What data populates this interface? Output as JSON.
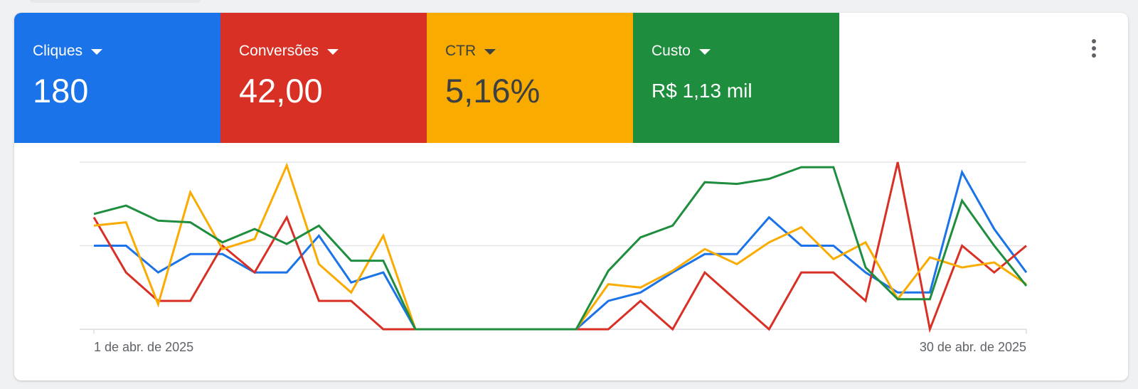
{
  "metrics": [
    {
      "label": "Cliques",
      "value": "180",
      "color": "#1a73e8",
      "text_color": "#ffffff"
    },
    {
      "label": "Conversões",
      "value": "42,00",
      "color": "#d93025",
      "text_color": "#ffffff"
    },
    {
      "label": "CTR",
      "value": "5,16%",
      "color": "#f9ab00",
      "text_color": "#3c4043"
    },
    {
      "label": "Custo",
      "value": "R$ 1,13 mil",
      "color": "#1e8e3e",
      "text_color": "#ffffff"
    }
  ],
  "icons": {
    "metric_dropdown": "caret-down-icon",
    "more": "more-vert-icon"
  },
  "chart_data": {
    "type": "line",
    "x": [
      "1 de abr. de 2025",
      "2",
      "3",
      "4",
      "5",
      "6",
      "7",
      "8",
      "9",
      "10",
      "11",
      "12",
      "13",
      "14",
      "15",
      "16",
      "17",
      "18",
      "19",
      "20",
      "21",
      "22",
      "23",
      "24",
      "25",
      "26",
      "27",
      "28",
      "29",
      "30 de abr. de 2025"
    ],
    "x_tick_labels": [
      "1 de abr. de 2025",
      "30 de abr. de 2025"
    ],
    "ylim": [
      0,
      100
    ],
    "grid": true,
    "y_gridlines": 3,
    "series": [
      {
        "color": "#1a73e8",
        "values": [
          50,
          50,
          34,
          45,
          45,
          34,
          34,
          56,
          28,
          34,
          0,
          0,
          0,
          0,
          0,
          0,
          17,
          22,
          34,
          45,
          45,
          67,
          50,
          50,
          34,
          22,
          22,
          94,
          60,
          34
        ]
      },
      {
        "color": "#d93025",
        "values": [
          67,
          34,
          17,
          17,
          50,
          34,
          67,
          17,
          17,
          0,
          0,
          0,
          0,
          0,
          0,
          0,
          0,
          17,
          0,
          34,
          17,
          0,
          34,
          34,
          17,
          100,
          0,
          50,
          34,
          50
        ]
      },
      {
        "color": "#f9ab00",
        "values": [
          62,
          64,
          15,
          82,
          48,
          54,
          98,
          39,
          22,
          56,
          0,
          0,
          0,
          0,
          0,
          0,
          27,
          25,
          35,
          48,
          39,
          52,
          61,
          42,
          52,
          18,
          43,
          37,
          40,
          27
        ]
      },
      {
        "color": "#1e8e3e",
        "values": [
          69,
          74,
          65,
          64,
          52,
          60,
          51,
          62,
          41,
          41,
          0,
          0,
          0,
          0,
          0,
          0,
          35,
          55,
          62,
          88,
          87,
          90,
          97,
          97,
          37,
          18,
          18,
          77,
          50,
          26
        ]
      }
    ]
  }
}
